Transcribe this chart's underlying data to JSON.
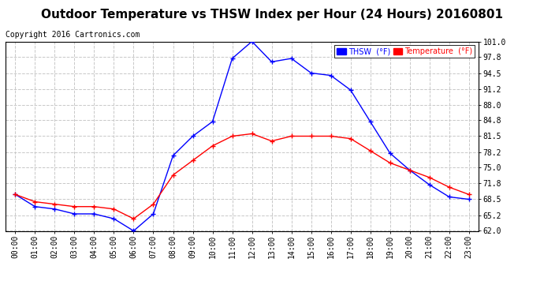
{
  "title": "Outdoor Temperature vs THSW Index per Hour (24 Hours) 20160801",
  "copyright": "Copyright 2016 Cartronics.com",
  "hours": [
    "00:00",
    "01:00",
    "02:00",
    "03:00",
    "04:00",
    "05:00",
    "06:00",
    "07:00",
    "08:00",
    "09:00",
    "10:00",
    "11:00",
    "12:00",
    "13:00",
    "14:00",
    "15:00",
    "16:00",
    "17:00",
    "18:00",
    "19:00",
    "20:00",
    "21:00",
    "22:00",
    "23:00"
  ],
  "thsw": [
    69.5,
    67.0,
    66.5,
    65.5,
    65.5,
    64.5,
    62.0,
    65.5,
    77.5,
    81.5,
    84.5,
    97.5,
    101.0,
    96.8,
    97.5,
    94.5,
    94.0,
    91.0,
    84.5,
    78.0,
    74.5,
    71.5,
    69.0,
    68.5
  ],
  "temp": [
    69.5,
    68.0,
    67.5,
    67.0,
    67.0,
    66.5,
    64.5,
    67.5,
    73.5,
    76.5,
    79.5,
    81.5,
    82.0,
    80.5,
    81.5,
    81.5,
    81.5,
    81.0,
    78.5,
    76.0,
    74.5,
    73.0,
    71.0,
    69.5
  ],
  "thsw_color": "#0000ff",
  "temp_color": "#ff0000",
  "bg_color": "#ffffff",
  "grid_color": "#c8c8c8",
  "ylim_min": 62.0,
  "ylim_max": 101.0,
  "yticks": [
    62.0,
    65.2,
    68.5,
    71.8,
    75.0,
    78.2,
    81.5,
    84.8,
    88.0,
    91.2,
    94.5,
    97.8,
    101.0
  ],
  "title_fontsize": 11,
  "copyright_fontsize": 7,
  "tick_fontsize": 7,
  "legend_thsw_label": "THSW  (°F)",
  "legend_temp_label": "Temperature  (°F)"
}
